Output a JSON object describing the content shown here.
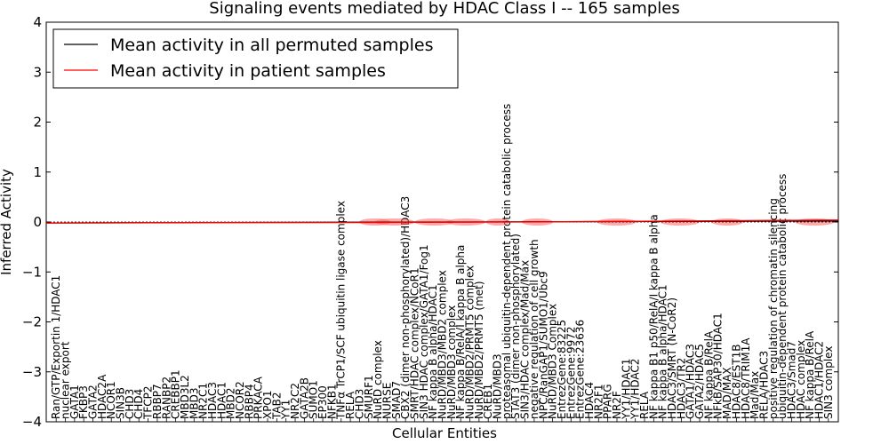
{
  "chart_data": {
    "type": "line",
    "title": "Signaling events mediated by HDAC Class I -- 165 samples",
    "xlabel": "Cellular Entities",
    "ylabel": "Inferred Activity",
    "ylim": [
      -4,
      4
    ],
    "yticks": [
      "4",
      "3",
      "2",
      "1",
      "0",
      "−1",
      "−2",
      "−3",
      "−4"
    ],
    "ytick_values": [
      4,
      3,
      2,
      1,
      0,
      -1,
      -2,
      -3,
      -4
    ],
    "legend": {
      "position": "top-left",
      "entries": [
        {
          "label": "Mean activity in all permuted samples",
          "color": "#000000"
        },
        {
          "label": "Mean activity in patient samples",
          "color": "#ff0000"
        }
      ]
    },
    "categories": [
      "Ran/GTP/Exportin 1/HDAC1",
      "nuclear export",
      "GATA1",
      "FKBP3",
      "GATA2",
      "HDAC2A",
      "NCOR1",
      "SIN3B",
      "CHD3",
      "CHD4",
      "TFCP2",
      "RBBP7",
      "RANBP2",
      "CREBBP1",
      "MBD3L2",
      "MBD3",
      "NR2C1",
      "HDAC3",
      "HDAC1",
      "MBD2",
      "NCOR2",
      "RBBP4",
      "PRKACA",
      "XPO1",
      "TAB2",
      "YY1",
      "NR2C2",
      "GATA2B",
      "SUMO1",
      "EP300",
      "NFKB1",
      "TNFα TrCP1/SCF ubiquitin ligase complex",
      "RELA",
      "CHD3",
      "SMURF1",
      "NuRD complex",
      "NURSE",
      "SMAD7",
      "CBX2 (dimer non-phosphorylated)/HDAC3",
      "SMRT/HDAC complex/NCoR1",
      "SIN3 HDAC complex/GATA1/Fog1",
      "NF kappa B alpha/HDAC1",
      "NuRD/MBD3/MBD2 complex",
      "NuRD/MBD3 complex",
      "NF kappa B/RelA/I kappa B alpha",
      "NuRD/MBD2/PRMT5 complex",
      "NuRD/MBD2/PRMT5 (met)",
      "CREB1",
      "NuRD/MBD3",
      "proteasomal ubiquitin-dependent protein catabolic process",
      "STAT3 (dimer non-phosphorylated)",
      "SIN3/HDAC complex/Mad/Max",
      "negative regulation of cell growth",
      "NPC/RanGAP1/SUMO1/Ubc9",
      "NuRD/MBD3 Complex",
      "EntrezGene:83225",
      "EntrezGene:9972",
      "EntrezGene:23636",
      "HDAC4",
      "NR2F1",
      "PPARG",
      "NR2F",
      "YY1/HDAC1",
      "YY1/HDAC2",
      "RELA",
      "NF kappa B1 p50/RelA/I kappa B alpha",
      "NF kappa B alpha/HDAC1",
      "HDAC3/SMRT (N-CoR2)",
      "HDAC3/TR2",
      "GATA1/HDAC3",
      "GATA2/HDAC5",
      "NF kappa B/RelA",
      "NFkB/SAP30/HDAC1",
      "MAD/MAX",
      "HDAC8/EST1B",
      "HDAC8/TRIM1A",
      "Mad/Max",
      "RELA/HDAC3",
      "positive regulation of chromatin silencing",
      "ubiquitin-dependent protein catabolic process",
      "HDAC3/Smad7",
      "HDAC complex",
      "NF kappa B/RelA",
      "HDAC1/HDAC2",
      "SIN3 complex"
    ],
    "series": [
      {
        "name": "Mean activity in all permuted samples",
        "color": "#000000",
        "x": [
          0,
          1
        ],
        "y": [
          -0.02,
          0.02
        ]
      },
      {
        "name": "Mean activity in patient samples",
        "color": "#ff0000",
        "x": [
          0,
          0.2,
          0.4,
          0.6,
          0.8,
          1
        ],
        "y": [
          -0.02,
          -0.01,
          -0.01,
          0.0,
          0.02,
          0.04
        ],
        "band_x": [
          0.415,
          0.44,
          0.49,
          0.53,
          0.57,
          0.62,
          0.72,
          0.8,
          0.86,
          0.97
        ],
        "band_halfwidth": [
          0.04,
          0.05,
          0.05,
          0.05,
          0.03,
          0.04,
          0.05,
          0.05,
          0.04,
          0.05
        ]
      }
    ]
  }
}
